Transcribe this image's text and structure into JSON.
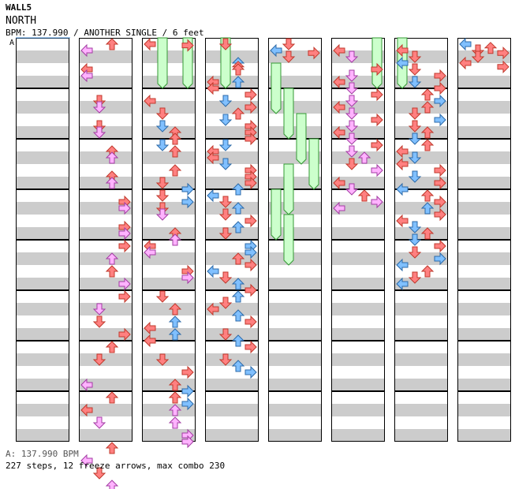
{
  "header": {
    "title": "WALL5",
    "song": "NORTH",
    "info": "BPM: 137.990 / ANOTHER SINGLE / 6 feet"
  },
  "marker": "A",
  "footer": {
    "bpm": "A: 137.990 BPM",
    "stats": "227 steps, 12 freeze arrows, max combo 230"
  },
  "colors": {
    "stripe": "#cccccc",
    "red": "#ff8080",
    "pink": "#ffb3ff",
    "blue": "#80c0ff",
    "freeze": "#ccffcc",
    "freeze_border": "#339933"
  },
  "chart_data": {
    "type": "table",
    "columns": 8,
    "measures_per_column": 8,
    "lanes": [
      "left",
      "down",
      "up",
      "right"
    ],
    "notes": [
      [
        1,
        0,
        "up",
        "red"
      ],
      [
        1,
        0.5,
        "left",
        "pink"
      ],
      [
        1,
        2,
        "left",
        "red"
      ],
      [
        1,
        2.5,
        "left",
        "pink"
      ],
      [
        1,
        4.5,
        "down",
        "red"
      ],
      [
        1,
        5,
        "down",
        "pink"
      ],
      [
        1,
        6.5,
        "down",
        "red"
      ],
      [
        1,
        7,
        "down",
        "pink"
      ],
      [
        1,
        8.5,
        "up",
        "red"
      ],
      [
        1,
        9,
        "up",
        "pink"
      ],
      [
        1,
        10.5,
        "up",
        "red"
      ],
      [
        1,
        11,
        "up",
        "pink"
      ],
      [
        1,
        12.5,
        "right",
        "red"
      ],
      [
        1,
        13,
        "right",
        "pink"
      ],
      [
        1,
        14.5,
        "right",
        "red"
      ],
      [
        1,
        15,
        "right",
        "pink"
      ],
      [
        1,
        16,
        "right",
        "red"
      ],
      [
        1,
        17,
        "up",
        "pink"
      ],
      [
        1,
        18,
        "up",
        "red"
      ],
      [
        1,
        19,
        "right",
        "pink"
      ],
      [
        1,
        20,
        "right",
        "red"
      ],
      [
        1,
        21,
        "down",
        "pink"
      ],
      [
        1,
        22,
        "down",
        "red"
      ],
      [
        1,
        23,
        "right",
        "red"
      ],
      [
        1,
        24,
        "up",
        "red"
      ],
      [
        1,
        25,
        "down",
        "red"
      ],
      [
        1,
        27,
        "left",
        "pink"
      ],
      [
        1,
        28,
        "up",
        "red"
      ],
      [
        1,
        29,
        "left",
        "red"
      ],
      [
        1,
        30,
        "down",
        "pink"
      ],
      [
        1,
        32,
        "up",
        "red"
      ],
      [
        1,
        33,
        "left",
        "pink"
      ],
      [
        1,
        34,
        "down",
        "red"
      ],
      [
        1,
        35,
        "up",
        "pink"
      ],
      [
        1,
        36,
        "right",
        "red"
      ],
      [
        2,
        0,
        "left",
        "red"
      ],
      [
        2,
        0.1,
        "right",
        "red"
      ],
      [
        2,
        4.5,
        "left",
        "red"
      ],
      [
        2,
        5.5,
        "down",
        "red"
      ],
      [
        2,
        6.5,
        "down",
        "blue"
      ],
      [
        2,
        7,
        "up",
        "red"
      ],
      [
        2,
        7.5,
        "up",
        "red"
      ],
      [
        2,
        8,
        "down",
        "blue"
      ],
      [
        2,
        8.5,
        "up",
        "red"
      ],
      [
        2,
        10,
        "up",
        "red"
      ],
      [
        2,
        11,
        "down",
        "red"
      ],
      [
        2,
        11.5,
        "right",
        "blue"
      ],
      [
        2,
        12,
        "down",
        "red"
      ],
      [
        2,
        12.5,
        "right",
        "blue"
      ],
      [
        2,
        13,
        "down",
        "red"
      ],
      [
        2,
        13.5,
        "down",
        "pink"
      ],
      [
        2,
        15,
        "up",
        "red"
      ],
      [
        2,
        15.5,
        "up",
        "pink"
      ],
      [
        2,
        16,
        "left",
        "red"
      ],
      [
        2,
        16.5,
        "left",
        "pink"
      ],
      [
        2,
        18,
        "right",
        "red"
      ],
      [
        2,
        18.5,
        "right",
        "pink"
      ],
      [
        2,
        20,
        "down",
        "red"
      ],
      [
        2,
        21,
        "up",
        "red"
      ],
      [
        2,
        22,
        "up",
        "blue"
      ],
      [
        2,
        22.5,
        "left",
        "red"
      ],
      [
        2,
        23,
        "up",
        "blue"
      ],
      [
        2,
        23.5,
        "left",
        "red"
      ],
      [
        2,
        25,
        "down",
        "red"
      ],
      [
        2,
        26,
        "right",
        "red"
      ],
      [
        2,
        27,
        "up",
        "red"
      ],
      [
        2,
        27.5,
        "right",
        "blue"
      ],
      [
        2,
        28,
        "up",
        "red"
      ],
      [
        2,
        28.5,
        "right",
        "blue"
      ],
      [
        2,
        29,
        "up",
        "pink"
      ],
      [
        2,
        30,
        "up",
        "pink"
      ],
      [
        2,
        31,
        "right",
        "pink"
      ],
      [
        2,
        31.5,
        "right",
        "pink"
      ],
      [
        3,
        0,
        "down",
        "red"
      ],
      [
        3,
        1.5,
        "up",
        "blue"
      ],
      [
        3,
        1.8,
        "up",
        "red"
      ],
      [
        3,
        2,
        "up",
        "red"
      ],
      [
        3,
        3,
        "left",
        "red"
      ],
      [
        3,
        3.5,
        "left",
        "red"
      ],
      [
        3,
        3,
        "up",
        "blue"
      ],
      [
        3,
        4,
        "right",
        "red"
      ],
      [
        3,
        4.5,
        "down",
        "blue"
      ],
      [
        3,
        5,
        "right",
        "red"
      ],
      [
        3,
        5.5,
        "up",
        "red"
      ],
      [
        3,
        6,
        "down",
        "blue"
      ],
      [
        3,
        6.5,
        "right",
        "red"
      ],
      [
        3,
        7,
        "right",
        "red"
      ],
      [
        3,
        7.5,
        "right",
        "red"
      ],
      [
        3,
        8,
        "down",
        "blue"
      ],
      [
        3,
        8.5,
        "left",
        "red"
      ],
      [
        3,
        9,
        "left",
        "red"
      ],
      [
        3,
        9.5,
        "down",
        "blue"
      ],
      [
        3,
        10,
        "right",
        "red"
      ],
      [
        3,
        10.5,
        "right",
        "red"
      ],
      [
        3,
        11,
        "right",
        "red"
      ],
      [
        3,
        11.5,
        "up",
        "blue"
      ],
      [
        3,
        12,
        "left",
        "blue"
      ],
      [
        3,
        12.5,
        "down",
        "red"
      ],
      [
        3,
        13,
        "up",
        "blue"
      ],
      [
        3,
        13.5,
        "down",
        "red"
      ],
      [
        3,
        14,
        "right",
        "red"
      ],
      [
        3,
        14.5,
        "up",
        "blue"
      ],
      [
        3,
        15,
        "down",
        "red"
      ],
      [
        3,
        16,
        "right",
        "blue"
      ],
      [
        3,
        16.5,
        "right",
        "blue"
      ],
      [
        3,
        17,
        "up",
        "red"
      ],
      [
        3,
        17.5,
        "right",
        "red"
      ],
      [
        3,
        18,
        "left",
        "blue"
      ],
      [
        3,
        18.5,
        "down",
        "red"
      ],
      [
        3,
        19,
        "up",
        "blue"
      ],
      [
        3,
        19.5,
        "right",
        "red"
      ],
      [
        3,
        20,
        "up",
        "blue"
      ],
      [
        3,
        20.5,
        "down",
        "red"
      ],
      [
        3,
        21,
        "left",
        "red"
      ],
      [
        3,
        21.5,
        "up",
        "blue"
      ],
      [
        3,
        22,
        "right",
        "red"
      ],
      [
        3,
        23,
        "down",
        "red"
      ],
      [
        3,
        23.5,
        "up",
        "blue"
      ],
      [
        3,
        24,
        "right",
        "red"
      ],
      [
        3,
        25,
        "down",
        "red"
      ],
      [
        3,
        25.5,
        "up",
        "blue"
      ],
      [
        3,
        26,
        "right",
        "blue"
      ],
      [
        4,
        0,
        "down",
        "red"
      ],
      [
        4,
        0.5,
        "left",
        "blue"
      ],
      [
        4,
        0.7,
        "right",
        "red"
      ],
      [
        4,
        1,
        "down",
        "red"
      ],
      [
        5,
        0.5,
        "left",
        "red"
      ],
      [
        5,
        1,
        "down",
        "pink"
      ],
      [
        5,
        2,
        "right",
        "red"
      ],
      [
        5,
        2.5,
        "down",
        "pink"
      ],
      [
        5,
        3,
        "left",
        "red"
      ],
      [
        5,
        3.5,
        "down",
        "pink"
      ],
      [
        5,
        4,
        "right",
        "red"
      ],
      [
        5,
        4.5,
        "down",
        "pink"
      ],
      [
        5,
        5,
        "left",
        "red"
      ],
      [
        5,
        5.5,
        "down",
        "pink"
      ],
      [
        5,
        6,
        "right",
        "red"
      ],
      [
        5,
        6.5,
        "down",
        "pink"
      ],
      [
        5,
        7,
        "left",
        "red"
      ],
      [
        5,
        7.5,
        "down",
        "pink"
      ],
      [
        5,
        8,
        "right",
        "red"
      ],
      [
        5,
        8.5,
        "down",
        "pink"
      ],
      [
        5,
        9,
        "up",
        "pink"
      ],
      [
        5,
        9.5,
        "down",
        "red"
      ],
      [
        5,
        10,
        "right",
        "pink"
      ],
      [
        5,
        11,
        "left",
        "red"
      ],
      [
        5,
        11.5,
        "down",
        "pink"
      ],
      [
        5,
        12,
        "up",
        "red"
      ],
      [
        5,
        12.5,
        "right",
        "pink"
      ],
      [
        5,
        13,
        "left",
        "pink"
      ],
      [
        6,
        0.5,
        "left",
        "red"
      ],
      [
        6,
        1,
        "down",
        "red"
      ],
      [
        6,
        1.5,
        "left",
        "blue"
      ],
      [
        6,
        2,
        "down",
        "red"
      ],
      [
        6,
        2.5,
        "right",
        "red"
      ],
      [
        6,
        3,
        "down",
        "blue"
      ],
      [
        6,
        3.5,
        "right",
        "red"
      ],
      [
        6,
        4,
        "up",
        "red"
      ],
      [
        6,
        4.5,
        "right",
        "blue"
      ],
      [
        6,
        5,
        "up",
        "red"
      ],
      [
        6,
        5.5,
        "down",
        "red"
      ],
      [
        6,
        6,
        "right",
        "blue"
      ],
      [
        6,
        6.5,
        "down",
        "red"
      ],
      [
        6,
        7,
        "up",
        "red"
      ],
      [
        6,
        7.5,
        "down",
        "blue"
      ],
      [
        6,
        8,
        "up",
        "red"
      ],
      [
        6,
        8.5,
        "left",
        "red"
      ],
      [
        6,
        9,
        "down",
        "blue"
      ],
      [
        6,
        9.5,
        "left",
        "red"
      ],
      [
        6,
        10,
        "right",
        "red"
      ],
      [
        6,
        10.5,
        "down",
        "blue"
      ],
      [
        6,
        11,
        "right",
        "red"
      ],
      [
        6,
        11.5,
        "left",
        "blue"
      ],
      [
        6,
        12,
        "up",
        "red"
      ],
      [
        6,
        12.5,
        "right",
        "red"
      ],
      [
        6,
        13,
        "up",
        "blue"
      ],
      [
        6,
        13.5,
        "right",
        "red"
      ],
      [
        6,
        14,
        "left",
        "red"
      ],
      [
        6,
        14.5,
        "down",
        "blue"
      ],
      [
        6,
        15,
        "up",
        "red"
      ],
      [
        6,
        15.5,
        "down",
        "blue"
      ],
      [
        6,
        16,
        "right",
        "red"
      ],
      [
        6,
        16.5,
        "down",
        "red"
      ],
      [
        6,
        17,
        "right",
        "blue"
      ],
      [
        6,
        17.5,
        "left",
        "blue"
      ],
      [
        6,
        18,
        "up",
        "red"
      ],
      [
        6,
        18.5,
        "down",
        "red"
      ],
      [
        6,
        19,
        "left",
        "blue"
      ],
      [
        7,
        0,
        "left",
        "blue"
      ],
      [
        7,
        0.3,
        "up",
        "red"
      ],
      [
        7,
        0.5,
        "down",
        "red"
      ],
      [
        7,
        0.7,
        "right",
        "red"
      ],
      [
        7,
        1,
        "down",
        "red"
      ],
      [
        7,
        1.5,
        "left",
        "red"
      ],
      [
        7,
        1.8,
        "right",
        "red"
      ]
    ],
    "freezes": [
      [
        2,
        0,
        "down",
        2
      ],
      [
        2,
        0,
        "right",
        2
      ],
      [
        3,
        0,
        "down",
        2
      ],
      [
        4,
        2,
        "left",
        2
      ],
      [
        4,
        4,
        "down",
        2
      ],
      [
        4,
        6,
        "up",
        2
      ],
      [
        4,
        8,
        "right",
        2
      ],
      [
        4,
        10,
        "down",
        2
      ],
      [
        4,
        12,
        "left",
        2
      ],
      [
        4,
        14,
        "down",
        2
      ],
      [
        5,
        0,
        "right",
        2
      ],
      [
        6,
        0,
        "left",
        2
      ]
    ]
  }
}
